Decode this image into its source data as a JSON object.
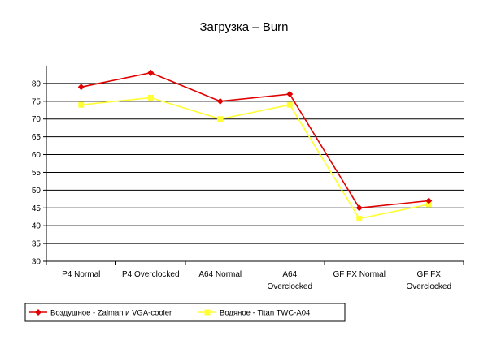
{
  "chart_data": {
    "type": "line",
    "title": "Загрузка – Burn",
    "categories": [
      [
        "P4 Normal"
      ],
      [
        "P4 Overclocked"
      ],
      [
        "A64 Normal"
      ],
      [
        "A64",
        "Overclocked"
      ],
      [
        "GF FX Normal"
      ],
      [
        "GF FX",
        "Overclocked"
      ]
    ],
    "ylim": [
      30,
      80
    ],
    "y_max_axis": 85,
    "yticks": [
      30,
      35,
      40,
      45,
      50,
      55,
      60,
      65,
      70,
      75,
      80
    ],
    "grid": true,
    "legend_position": "bottom-left",
    "series": [
      {
        "name": "Воздушное - Zalman и VGA-cooler",
        "color": "#e00000",
        "marker": "diamond",
        "values": [
          79,
          83,
          75,
          77,
          45,
          47
        ]
      },
      {
        "name": "Водяное - Titan TWC-A04",
        "color": "#ffff33",
        "marker": "square",
        "values": [
          74,
          76,
          70,
          74,
          42,
          46
        ]
      }
    ]
  }
}
